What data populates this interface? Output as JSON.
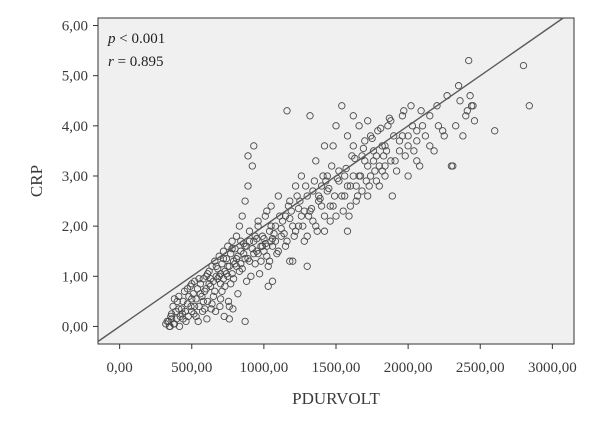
{
  "chart_data": {
    "type": "scatter",
    "xlabel": "PDURVOLT",
    "ylabel": "CRP",
    "xlim": [
      -150,
      3150
    ],
    "ylim": [
      -0.35,
      6.15
    ],
    "x_ticks": [
      0,
      500,
      1000,
      1500,
      2000,
      2500,
      3000
    ],
    "x_tick_labels": [
      "0,00",
      "500,00",
      "1000,00",
      "1500,00",
      "2000,00",
      "2500,00",
      "3000,00"
    ],
    "y_ticks": [
      0,
      1,
      2,
      3,
      4,
      5,
      6
    ],
    "y_tick_labels": [
      "0,00",
      "1,00",
      "2,00",
      "3,00",
      "4,00",
      "5,00",
      "6,00"
    ],
    "annotations": {
      "p_symbol": "p",
      "p_rest": " < 0.001",
      "r_symbol": "r",
      "r_rest": " = 0.895"
    },
    "fit_line": {
      "slope": 0.002,
      "intercept": 0.0,
      "x_range": [
        -150,
        3150
      ]
    },
    "grid": false,
    "colors": {
      "plot_background": "#f0f0f0",
      "marker_stroke": "#4a4a4a",
      "line": "#5a5a5a",
      "axis": "#333333"
    },
    "points_note_count": 0,
    "points": [
      [
        320,
        0.05
      ],
      [
        340,
        0.1
      ],
      [
        350,
        0.0
      ],
      [
        360,
        0.15
      ],
      [
        370,
        0.4
      ],
      [
        380,
        0.05
      ],
      [
        390,
        0.3
      ],
      [
        400,
        0.5
      ],
      [
        410,
        0.6
      ],
      [
        420,
        0.2
      ],
      [
        430,
        0.35
      ],
      [
        440,
        0.5
      ],
      [
        450,
        0.7
      ],
      [
        460,
        0.1
      ],
      [
        470,
        0.45
      ],
      [
        480,
        0.6
      ],
      [
        490,
        0.8
      ],
      [
        500,
        0.3
      ],
      [
        510,
        0.65
      ],
      [
        520,
        0.9
      ],
      [
        530,
        0.55
      ],
      [
        540,
        0.75
      ],
      [
        550,
        0.4
      ],
      [
        560,
        0.85
      ],
      [
        570,
        0.6
      ],
      [
        580,
        0.95
      ],
      [
        590,
        0.7
      ],
      [
        600,
        1.0
      ],
      [
        610,
        0.5
      ],
      [
        620,
        1.1
      ],
      [
        630,
        0.8
      ],
      [
        640,
        1.2
      ],
      [
        650,
        0.9
      ],
      [
        660,
        1.3
      ],
      [
        670,
        1.0
      ],
      [
        680,
        1.15
      ],
      [
        690,
        1.4
      ],
      [
        700,
        1.05
      ],
      [
        710,
        1.25
      ],
      [
        720,
        1.5
      ],
      [
        730,
        1.1
      ],
      [
        740,
        1.35
      ],
      [
        750,
        1.6
      ],
      [
        760,
        1.2
      ],
      [
        770,
        1.45
      ],
      [
        780,
        1.7
      ],
      [
        790,
        1.3
      ],
      [
        800,
        1.55
      ],
      [
        810,
        1.8
      ],
      [
        820,
        1.4
      ],
      [
        830,
        2.0
      ],
      [
        840,
        1.5
      ],
      [
        850,
        2.2
      ],
      [
        860,
        1.65
      ],
      [
        870,
        2.5
      ],
      [
        880,
        1.6
      ],
      [
        890,
        2.8
      ],
      [
        900,
        1.7
      ],
      [
        920,
        3.2
      ],
      [
        940,
        1.8
      ],
      [
        950,
        1.5
      ],
      [
        960,
        2.0
      ],
      [
        980,
        1.6
      ],
      [
        1000,
        1.75
      ],
      [
        1010,
        2.2
      ],
      [
        1020,
        1.4
      ],
      [
        1030,
        0.8
      ],
      [
        1040,
        1.9
      ],
      [
        1050,
        2.4
      ],
      [
        1060,
        1.6
      ],
      [
        1080,
        2.0
      ],
      [
        1100,
        2.6
      ],
      [
        1120,
        1.8
      ],
      [
        1150,
        2.2
      ],
      [
        1160,
        4.3
      ],
      [
        1180,
        2.5
      ],
      [
        1200,
        1.3
      ],
      [
        1220,
        2.8
      ],
      [
        1240,
        2.0
      ],
      [
        1260,
        3.0
      ],
      [
        1280,
        2.3
      ],
      [
        1300,
        2.6
      ],
      [
        1320,
        4.2
      ],
      [
        1340,
        2.1
      ],
      [
        1360,
        3.3
      ],
      [
        1380,
        2.5
      ],
      [
        1400,
        2.8
      ],
      [
        1420,
        1.9
      ],
      [
        1440,
        3.0
      ],
      [
        1460,
        2.4
      ],
      [
        1480,
        3.6
      ],
      [
        1500,
        2.2
      ],
      [
        1520,
        2.9
      ],
      [
        1540,
        4.4
      ],
      [
        1560,
        2.6
      ],
      [
        1580,
        3.8
      ],
      [
        1600,
        2.4
      ],
      [
        1620,
        3.0
      ],
      [
        1640,
        2.8
      ],
      [
        1660,
        4.0
      ],
      [
        1680,
        2.7
      ],
      [
        1700,
        3.3
      ],
      [
        1720,
        2.6
      ],
      [
        1740,
        3.0
      ],
      [
        1760,
        3.5
      ],
      [
        1780,
        2.9
      ],
      [
        1800,
        3.2
      ],
      [
        1820,
        3.6
      ],
      [
        1840,
        3.0
      ],
      [
        1860,
        4.0
      ],
      [
        1880,
        3.3
      ],
      [
        1900,
        3.8
      ],
      [
        1920,
        3.1
      ],
      [
        1940,
        3.5
      ],
      [
        1960,
        4.2
      ],
      [
        1980,
        3.4
      ],
      [
        2000,
        3.8
      ],
      [
        2020,
        4.4
      ],
      [
        2040,
        3.5
      ],
      [
        2060,
        3.9
      ],
      [
        2080,
        3.2
      ],
      [
        2100,
        4.0
      ],
      [
        2150,
        3.6
      ],
      [
        2200,
        4.4
      ],
      [
        2250,
        3.8
      ],
      [
        2300,
        3.2
      ],
      [
        2350,
        4.8
      ],
      [
        2400,
        4.2
      ],
      [
        2420,
        5.3
      ],
      [
        2440,
        4.4
      ],
      [
        2600,
        3.9
      ],
      [
        2800,
        5.2
      ],
      [
        2840,
        4.4
      ],
      [
        360,
        0.25
      ],
      [
        380,
        0.55
      ],
      [
        410,
        0.35
      ],
      [
        440,
        0.15
      ],
      [
        470,
        0.75
      ],
      [
        500,
        0.55
      ],
      [
        530,
        0.2
      ],
      [
        560,
        0.65
      ],
      [
        590,
        0.35
      ],
      [
        620,
        0.85
      ],
      [
        650,
        0.6
      ],
      [
        680,
        0.95
      ],
      [
        710,
        0.7
      ],
      [
        740,
        1.05
      ],
      [
        770,
        0.85
      ],
      [
        800,
        1.25
      ],
      [
        830,
        1.1
      ],
      [
        860,
        1.45
      ],
      [
        890,
        1.35
      ],
      [
        920,
        1.55
      ],
      [
        950,
        1.75
      ],
      [
        980,
        1.3
      ],
      [
        1010,
        1.65
      ],
      [
        1040,
        1.3
      ],
      [
        1070,
        1.85
      ],
      [
        1100,
        1.5
      ],
      [
        1130,
        2.1
      ],
      [
        1160,
        1.7
      ],
      [
        1190,
        2.3
      ],
      [
        1220,
        1.9
      ],
      [
        1250,
        2.5
      ],
      [
        1280,
        1.7
      ],
      [
        1310,
        2.2
      ],
      [
        1340,
        2.7
      ],
      [
        1370,
        1.9
      ],
      [
        1400,
        2.4
      ],
      [
        1430,
        2.9
      ],
      [
        1460,
        2.1
      ],
      [
        1490,
        2.6
      ],
      [
        1520,
        3.1
      ],
      [
        1550,
        2.3
      ],
      [
        1580,
        2.8
      ],
      [
        1610,
        3.4
      ],
      [
        1640,
        2.5
      ],
      [
        1670,
        3.0
      ],
      [
        1700,
        3.7
      ],
      [
        1730,
        2.8
      ],
      [
        1760,
        3.3
      ],
      [
        1790,
        3.9
      ],
      [
        1820,
        3.1
      ],
      [
        1850,
        3.5
      ],
      [
        1880,
        4.1
      ],
      [
        1910,
        3.3
      ],
      [
        1940,
        3.7
      ],
      [
        1970,
        4.3
      ],
      [
        2000,
        3.6
      ],
      [
        2030,
        4.0
      ],
      [
        2060,
        3.7
      ],
      [
        2090,
        4.3
      ],
      [
        2120,
        3.8
      ],
      [
        700,
        0.55
      ],
      [
        730,
        0.8
      ],
      [
        760,
        0.4
      ],
      [
        790,
        0.95
      ],
      [
        820,
        0.65
      ],
      [
        850,
        1.15
      ],
      [
        880,
        0.9
      ],
      [
        910,
        1.0
      ],
      [
        940,
        1.25
      ],
      [
        970,
        1.05
      ],
      [
        1000,
        1.5
      ],
      [
        1030,
        1.2
      ],
      [
        1060,
        1.75
      ],
      [
        1090,
        1.45
      ],
      [
        1120,
        1.95
      ],
      [
        1150,
        1.6
      ],
      [
        1180,
        2.15
      ],
      [
        1210,
        1.8
      ],
      [
        1240,
        2.35
      ],
      [
        1270,
        2.0
      ],
      [
        1300,
        1.8
      ],
      [
        1330,
        2.35
      ],
      [
        1360,
        2.0
      ],
      [
        1390,
        2.55
      ],
      [
        1420,
        2.2
      ],
      [
        1450,
        2.75
      ],
      [
        1480,
        2.4
      ],
      [
        1510,
        2.95
      ],
      [
        1540,
        2.6
      ],
      [
        1570,
        3.15
      ],
      [
        1600,
        2.8
      ],
      [
        1630,
        3.35
      ],
      [
        1660,
        3.0
      ],
      [
        1690,
        3.55
      ],
      [
        1720,
        3.2
      ],
      [
        1750,
        3.75
      ],
      [
        1780,
        3.4
      ],
      [
        1810,
        3.95
      ],
      [
        1840,
        3.6
      ],
      [
        1870,
        4.15
      ],
      [
        500,
        0.85
      ],
      [
        520,
        0.4
      ],
      [
        550,
        0.95
      ],
      [
        580,
        0.5
      ],
      [
        610,
        1.05
      ],
      [
        640,
        0.45
      ],
      [
        670,
        1.2
      ],
      [
        700,
        0.85
      ],
      [
        720,
        1.35
      ],
      [
        750,
        1.0
      ],
      [
        780,
        1.55
      ],
      [
        810,
        1.2
      ],
      [
        840,
        1.7
      ],
      [
        870,
        1.35
      ],
      [
        900,
        1.9
      ],
      [
        930,
        1.45
      ],
      [
        960,
        2.1
      ],
      [
        990,
        1.6
      ],
      [
        1020,
        2.3
      ],
      [
        1050,
        1.7
      ],
      [
        330,
        0.1
      ],
      [
        345,
        0.0
      ],
      [
        355,
        0.2
      ],
      [
        375,
        0.05
      ],
      [
        395,
        0.15
      ],
      [
        415,
        0.0
      ],
      [
        435,
        0.25
      ],
      [
        455,
        0.3
      ],
      [
        475,
        0.2
      ],
      [
        495,
        0.4
      ],
      [
        515,
        0.25
      ],
      [
        545,
        0.1
      ],
      [
        575,
        0.3
      ],
      [
        605,
        0.15
      ],
      [
        635,
        0.35
      ],
      [
        665,
        0.3
      ],
      [
        695,
        0.4
      ],
      [
        725,
        0.2
      ],
      [
        755,
        0.5
      ],
      [
        785,
        0.35
      ],
      [
        600,
        0.75
      ],
      [
        630,
        0.95
      ],
      [
        660,
        0.7
      ],
      [
        690,
        1.0
      ],
      [
        720,
        0.95
      ],
      [
        750,
        1.2
      ],
      [
        780,
        1.05
      ],
      [
        810,
        1.35
      ],
      [
        840,
        1.25
      ],
      [
        870,
        1.6
      ],
      [
        900,
        1.3
      ],
      [
        930,
        1.7
      ],
      [
        960,
        1.45
      ],
      [
        990,
        1.8
      ],
      [
        1020,
        1.6
      ],
      [
        1050,
        2.0
      ],
      [
        1080,
        1.7
      ],
      [
        1110,
        2.2
      ],
      [
        1140,
        1.85
      ],
      [
        1170,
        2.4
      ],
      [
        1200,
        2.0
      ],
      [
        1230,
        2.6
      ],
      [
        1260,
        2.2
      ],
      [
        1290,
        2.8
      ],
      [
        1320,
        2.3
      ],
      [
        1350,
        2.9
      ],
      [
        1380,
        2.6
      ],
      [
        1410,
        3.0
      ],
      [
        1440,
        2.7
      ],
      [
        1470,
        3.2
      ],
      [
        1560,
        3.0
      ],
      [
        1590,
        2.2
      ],
      [
        1620,
        3.6
      ],
      [
        1650,
        2.6
      ],
      [
        1680,
        3.4
      ],
      [
        1710,
        2.9
      ],
      [
        1740,
        3.8
      ],
      [
        1770,
        3.1
      ],
      [
        1800,
        2.8
      ],
      [
        1830,
        3.4
      ],
      [
        2150,
        4.2
      ],
      [
        2180,
        3.5
      ],
      [
        2210,
        4.0
      ],
      [
        2240,
        3.9
      ],
      [
        2270,
        4.6
      ],
      [
        2310,
        3.2
      ],
      [
        2330,
        4.0
      ],
      [
        2360,
        4.5
      ],
      [
        2380,
        3.8
      ],
      [
        2410,
        4.3
      ],
      [
        2430,
        4.6
      ],
      [
        2450,
        4.4
      ],
      [
        2460,
        4.1
      ],
      [
        890,
        3.4
      ],
      [
        930,
        3.6
      ],
      [
        870,
        0.1
      ],
      [
        760,
        0.15
      ],
      [
        1300,
        1.2
      ],
      [
        1180,
        1.3
      ],
      [
        1060,
        0.9
      ],
      [
        1420,
        3.6
      ],
      [
        1500,
        4.0
      ],
      [
        1620,
        4.2
      ],
      [
        1720,
        4.1
      ],
      [
        1840,
        3.2
      ],
      [
        1890,
        2.6
      ],
      [
        2000,
        3.0
      ],
      [
        2060,
        3.3
      ],
      [
        1960,
        3.8
      ],
      [
        1580,
        1.9
      ]
    ]
  }
}
